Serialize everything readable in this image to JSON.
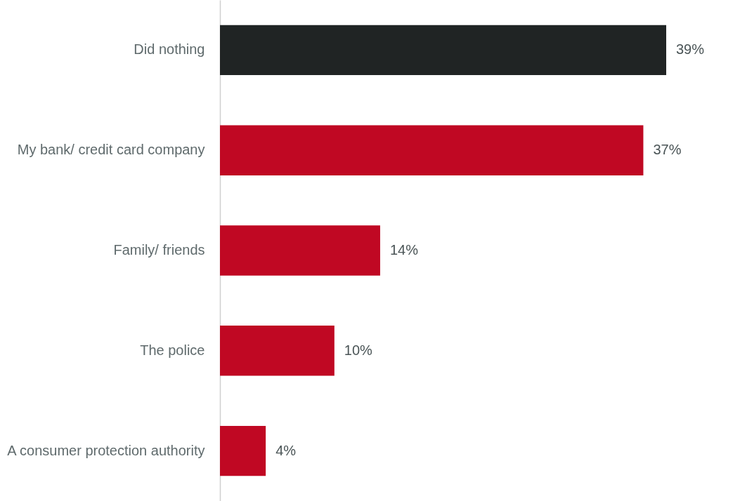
{
  "chart_data": {
    "type": "bar",
    "orientation": "horizontal",
    "categories": [
      "Did nothing",
      "My bank/ credit card company",
      "Family/ friends",
      "The police",
      "A consumer protection authority"
    ],
    "values": [
      39,
      37,
      14,
      10,
      4
    ],
    "colors": [
      "#202424",
      "#c00823",
      "#c00823",
      "#c00823",
      "#c00823"
    ],
    "value_labels": [
      "39%",
      "37%",
      "14%",
      "10%",
      "4%"
    ]
  }
}
